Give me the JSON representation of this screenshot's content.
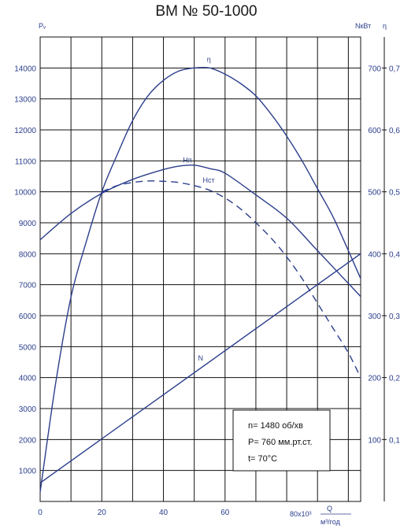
{
  "chart_data": {
    "type": "line",
    "title": "ВМ № 50-1000",
    "axes": {
      "x": {
        "label": "Q",
        "unit_label": "м³/год",
        "scale_label": "80x10³",
        "ticks": [
          "0",
          "20",
          "40",
          "60"
        ],
        "range": [
          0,
          104
        ]
      },
      "y_left": {
        "label": "Pᵥ",
        "ticks": [
          "1000",
          "2000",
          "3000",
          "4000",
          "5000",
          "6000",
          "7000",
          "8000",
          "9000",
          "10000",
          "11000",
          "12000",
          "13000",
          "14000"
        ],
        "range": [
          0,
          15000
        ]
      },
      "y_power": {
        "label": "NкВт",
        "ticks": [
          "100",
          "200",
          "300",
          "400",
          "500",
          "600",
          "700"
        ],
        "range": [
          0,
          750
        ]
      },
      "y_eff": {
        "label": "η",
        "ticks": [
          "0,1",
          "0,2",
          "0,3",
          "0,4",
          "0,5",
          "0,6",
          "0,7"
        ],
        "range": [
          0,
          0.75
        ]
      }
    },
    "grid": true,
    "series": [
      {
        "name": "Hп",
        "axis": "y_left",
        "style": "solid",
        "color": "#2b3e8c",
        "x": [
          0,
          10,
          20,
          30,
          40,
          45,
          50,
          55,
          60,
          70,
          80,
          90,
          104
        ],
        "y": [
          8450,
          9300,
          9950,
          10400,
          10720,
          10830,
          10860,
          10750,
          10600,
          9900,
          9150,
          8100,
          6620
        ]
      },
      {
        "name": "Hст",
        "axis": "y_left",
        "style": "dashed",
        "color": "#2b3e8c",
        "x": [
          20,
          25,
          30,
          35,
          40,
          45,
          50,
          55,
          60,
          65,
          70,
          75,
          80,
          85,
          90,
          95,
          100,
          104
        ],
        "y": [
          10000,
          10200,
          10300,
          10350,
          10340,
          10300,
          10200,
          10050,
          9800,
          9450,
          9000,
          8500,
          7900,
          7200,
          6400,
          5600,
          4800,
          4000
        ]
      },
      {
        "name": "N",
        "axis": "y_power",
        "style": "solid",
        "color": "#2b3e8c",
        "x": [
          0,
          104
        ],
        "y": [
          30,
          400
        ]
      },
      {
        "name": "η",
        "axis": "y_eff",
        "style": "solid",
        "color": "#2b3e8c",
        "x": [
          0,
          5,
          10,
          15,
          20,
          25,
          30,
          35,
          40,
          45,
          50,
          55,
          60,
          65,
          70,
          75,
          80,
          85,
          90,
          95,
          100,
          104
        ],
        "y": [
          0.015,
          0.19,
          0.33,
          0.42,
          0.5,
          0.56,
          0.615,
          0.655,
          0.68,
          0.695,
          0.7,
          0.7,
          0.69,
          0.675,
          0.655,
          0.625,
          0.59,
          0.55,
          0.505,
          0.46,
          0.405,
          0.36
        ]
      }
    ],
    "info_box": [
      "n= 1480 об/хв",
      "P= 760 мм.рт.ст.",
      "t= 70°C"
    ]
  }
}
